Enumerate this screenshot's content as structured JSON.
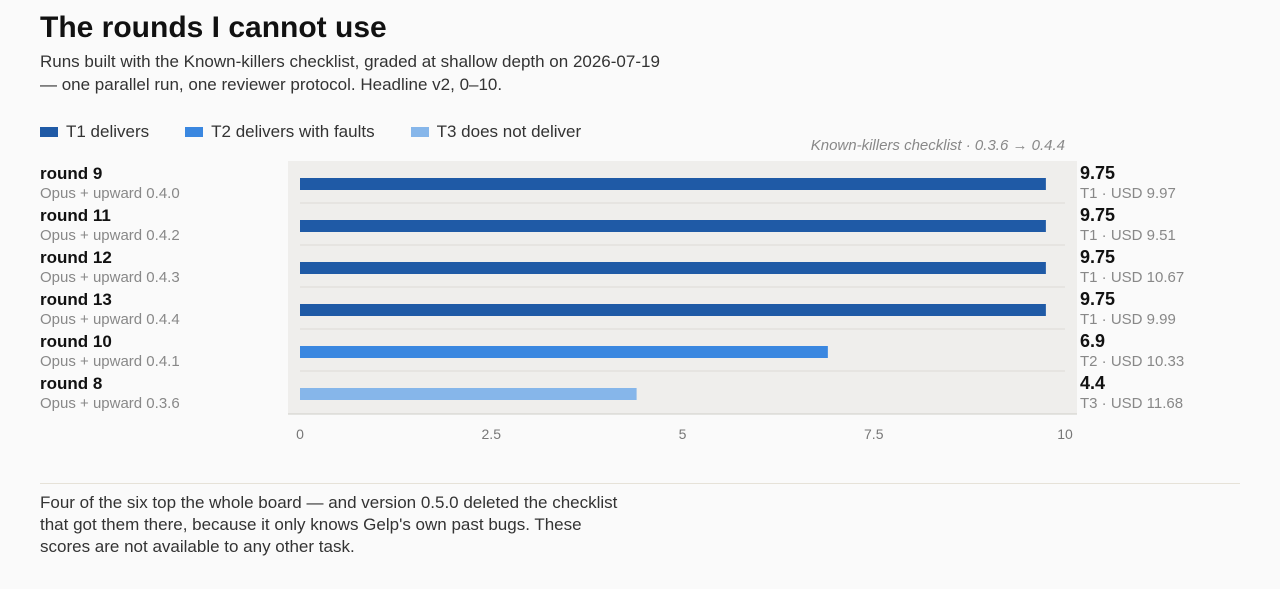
{
  "title": "The rounds I cannot use",
  "subtitle": "Runs built with the Known-killers checklist, graded at shallow depth on 2026-07-19 — one parallel run, one reviewer protocol. Headline v2, 0–10.",
  "legend": [
    {
      "label": "T1 delivers",
      "color": "#1f5aa6"
    },
    {
      "label": "T2 delivers with faults",
      "color": "#3a87e0"
    },
    {
      "label": "T3 does not deliver",
      "color": "#86b6ea"
    }
  ],
  "annotation": "Known-killers checklist · 0.3.6 → 0.4.4",
  "chart_data": {
    "type": "bar",
    "orientation": "horizontal",
    "categories": [
      "round 9",
      "round 11",
      "round 12",
      "round 13",
      "round 10",
      "round 8"
    ],
    "sublabels": [
      "Opus + upward 0.4.0",
      "Opus + upward 0.4.2",
      "Opus + upward 0.4.3",
      "Opus + upward 0.4.4",
      "Opus + upward 0.4.1",
      "Opus + upward 0.3.6"
    ],
    "values": [
      9.75,
      9.75,
      9.75,
      9.75,
      6.9,
      4.4
    ],
    "value_labels": [
      "9.75",
      "9.75",
      "9.75",
      "9.75",
      "6.9",
      "4.4"
    ],
    "tiers": [
      "T1",
      "T1",
      "T1",
      "T1",
      "T2",
      "T3"
    ],
    "detail_labels": [
      "T1 · USD 9.97",
      "T1 · USD 9.51",
      "T1 · USD 10.67",
      "T1 · USD 9.99",
      "T2 · USD 10.33",
      "T3 · USD 11.68"
    ],
    "xlim": [
      0,
      10
    ],
    "xticks": [
      0,
      2.5,
      5,
      7.5,
      10
    ],
    "xtick_labels": [
      "0",
      "2.5",
      "5",
      "7.5",
      "10"
    ],
    "grid": false,
    "legend_position": "top-left",
    "tier_colors": {
      "T1": "#1f5aa6",
      "T2": "#3a87e0",
      "T3": "#86b6ea"
    }
  },
  "footer": "Four of the six top the whole board — and version 0.5.0 deleted the checklist that got them there, because it only knows Gelp's own past bugs. These scores are not available to any other task."
}
